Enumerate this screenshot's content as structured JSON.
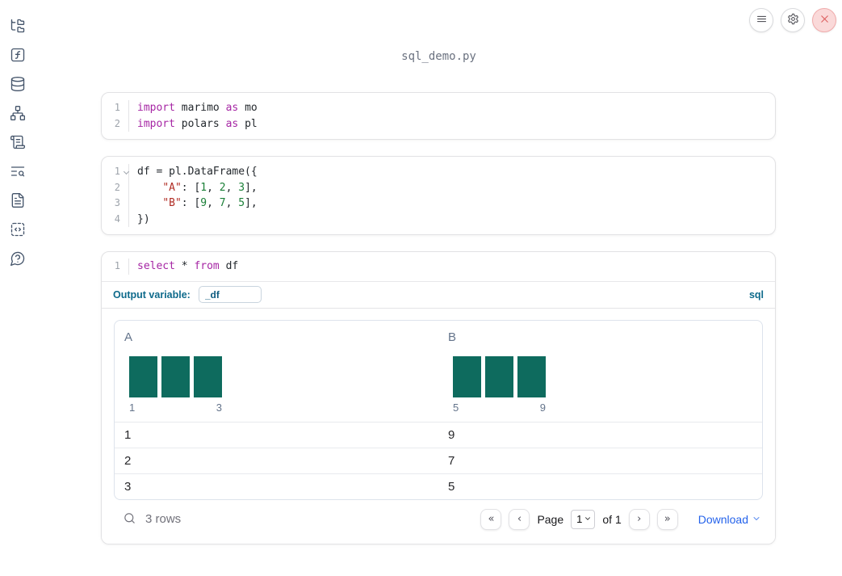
{
  "notebook": {
    "title": "sql_demo.py"
  },
  "topbar": {
    "buttons": [
      "menu",
      "settings",
      "shutdown"
    ]
  },
  "sidebar": {
    "items": [
      "file-explorer",
      "variables",
      "data-sources",
      "dependency-graph",
      "logs",
      "search",
      "documentation",
      "snippets",
      "help"
    ]
  },
  "code_cells": [
    {
      "id": "imports",
      "lines": [
        {
          "n": "1",
          "tokens": [
            [
              "kw",
              "import"
            ],
            [
              "tx",
              " marimo "
            ],
            [
              "kw",
              "as"
            ],
            [
              "tx",
              " mo"
            ]
          ]
        },
        {
          "n": "2",
          "tokens": [
            [
              "kw",
              "import"
            ],
            [
              "tx",
              " polars "
            ],
            [
              "kw",
              "as"
            ],
            [
              "tx",
              " pl"
            ]
          ]
        }
      ]
    },
    {
      "id": "dataframe",
      "lines": [
        {
          "n": "1",
          "fold": true,
          "tokens": [
            [
              "tx",
              "df = pl.DataFrame({"
            ]
          ]
        },
        {
          "n": "2",
          "tokens": [
            [
              "tx",
              "    "
            ],
            [
              "str",
              "\"A\""
            ],
            [
              "tx",
              ": ["
            ],
            [
              "num",
              "1"
            ],
            [
              "tx",
              ", "
            ],
            [
              "num",
              "2"
            ],
            [
              "tx",
              ", "
            ],
            [
              "num",
              "3"
            ],
            [
              "tx",
              "],"
            ]
          ]
        },
        {
          "n": "3",
          "tokens": [
            [
              "tx",
              "    "
            ],
            [
              "str",
              "\"B\""
            ],
            [
              "tx",
              ": ["
            ],
            [
              "num",
              "9"
            ],
            [
              "tx",
              ", "
            ],
            [
              "num",
              "7"
            ],
            [
              "tx",
              ", "
            ],
            [
              "num",
              "5"
            ],
            [
              "tx",
              "],"
            ]
          ]
        },
        {
          "n": "4",
          "tokens": [
            [
              "tx",
              "})"
            ]
          ]
        }
      ]
    },
    {
      "id": "sql-query",
      "lines": [
        {
          "n": "1",
          "tokens": [
            [
              "kw",
              "select"
            ],
            [
              "tx",
              " * "
            ],
            [
              "kw",
              "from"
            ],
            [
              "tx",
              " df"
            ]
          ]
        }
      ]
    }
  ],
  "sql_cell": {
    "output_variable_label": "Output variable:",
    "output_variable_value": "_df",
    "language_badge": "sql"
  },
  "table": {
    "columns": [
      {
        "header": "A",
        "histogram": {
          "values": [
            1,
            1,
            1
          ],
          "min_label": "1",
          "max_label": "3",
          "bar_color": "#0e6b5e"
        }
      },
      {
        "header": "B",
        "histogram": {
          "values": [
            1,
            1,
            1
          ],
          "min_label": "5",
          "max_label": "9",
          "bar_color": "#0e6b5e"
        }
      }
    ],
    "rows": [
      [
        "1",
        "9"
      ],
      [
        "2",
        "7"
      ],
      [
        "3",
        "5"
      ]
    ],
    "footer": {
      "row_count": "3 rows",
      "first_page_glyph": "«",
      "prev_page_glyph": "‹",
      "next_page_glyph": "›",
      "last_page_glyph": "»",
      "page_label": "Page",
      "page_value": "1",
      "of_label": "of 1",
      "download_label": "Download"
    }
  },
  "colors": {
    "histogram_bar": "#0e6b5e",
    "keyword": "#a626a4",
    "string": "#b02c24",
    "number": "#1a7f37",
    "sql_accent": "#0e6a8b",
    "download_link": "#2563eb",
    "danger": "#dc5b5b"
  }
}
